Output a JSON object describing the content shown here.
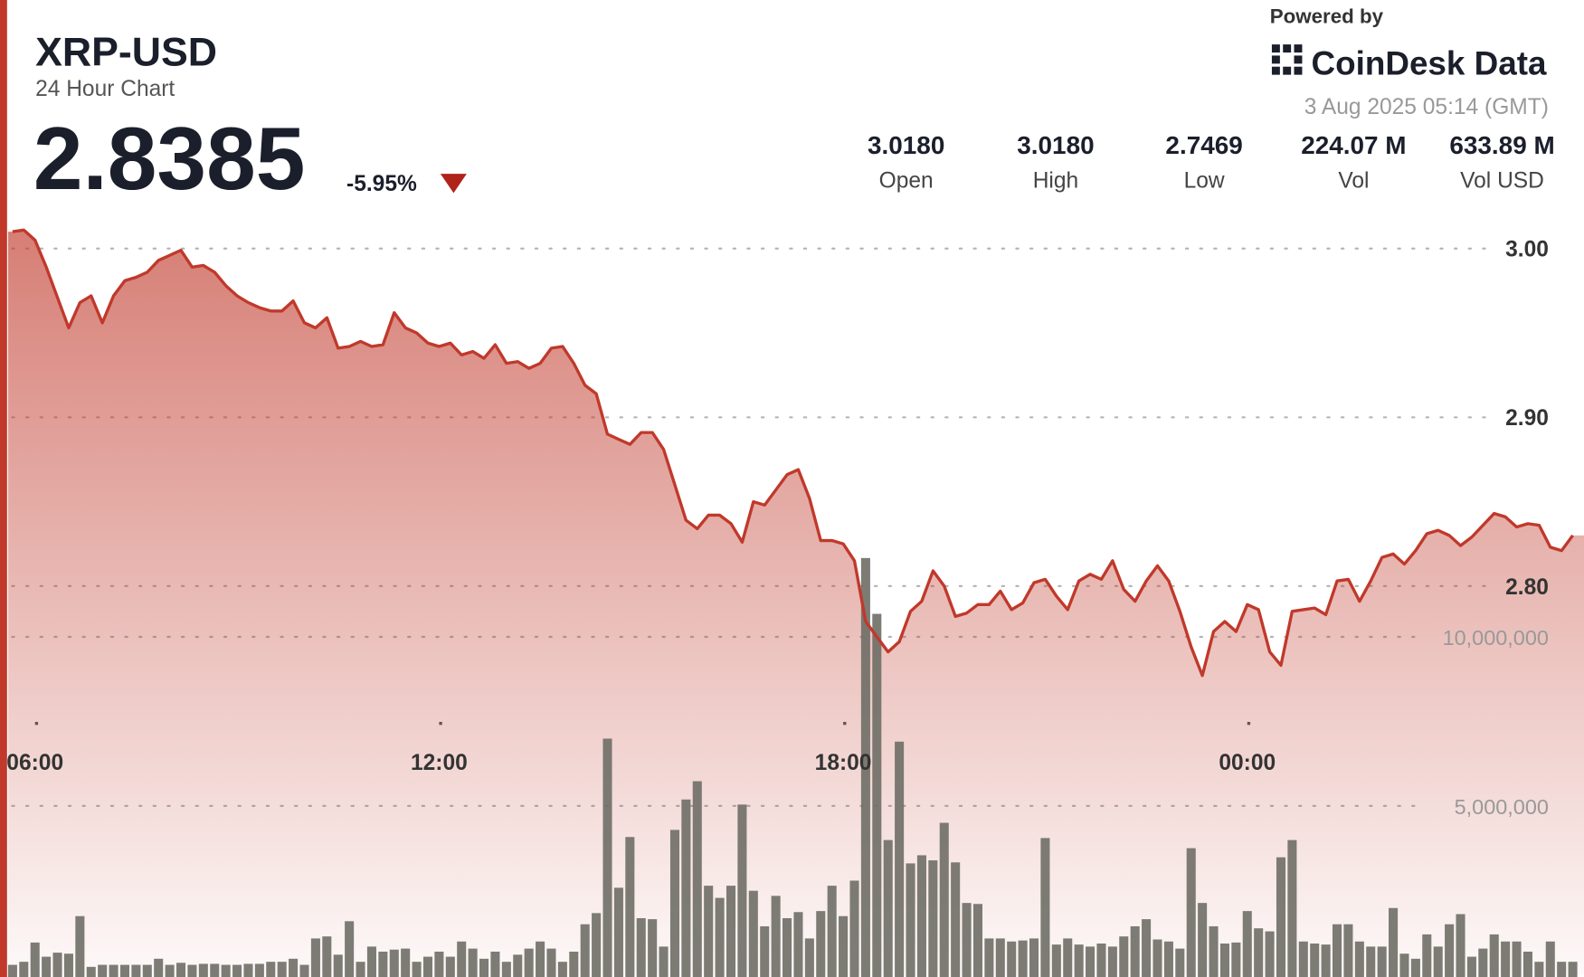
{
  "summary": {
    "price": "2.8385",
    "change": "-5.95%",
    "powered_by": "Powered by",
    "brand": "CoinDesk Data",
    "timestamp": "3 Aug 2025 05:14 (GMT)",
    "stats": [
      {
        "value": "3.0180",
        "label": "Open"
      },
      {
        "value": "3.0180",
        "label": "High"
      },
      {
        "value": "2.7469",
        "label": "Low"
      },
      {
        "value": "224.07 M",
        "label": "Vol"
      },
      {
        "value": "633.89 M",
        "label": "Vol USD"
      }
    ]
  },
  "chart_data": {
    "type": "line",
    "title": "XRP-USD",
    "subtitle": "24 Hour Chart",
    "x": [
      340,
      350,
      360,
      370,
      380,
      390,
      400,
      410,
      420,
      430,
      440,
      450,
      460,
      470,
      480,
      490,
      500,
      510,
      520,
      530,
      540,
      550,
      560,
      570,
      580,
      590,
      600,
      610,
      620,
      630,
      640,
      650,
      660,
      670,
      680,
      690,
      700,
      710,
      720,
      730,
      740,
      750,
      760,
      770,
      780,
      790,
      800,
      810,
      820,
      830,
      840,
      850,
      860,
      870,
      880,
      890,
      900,
      910,
      920,
      930,
      940,
      950,
      960,
      970,
      980,
      990,
      1000,
      1010,
      1020,
      1030,
      1040,
      1050,
      1060,
      1070,
      1080,
      1090,
      1100,
      1110,
      1120,
      1130,
      1140,
      1150,
      1160,
      1170,
      1180,
      1190,
      1200,
      1210,
      1220,
      1230,
      1240,
      1250,
      1260,
      1270,
      1280,
      1290,
      1300,
      1310,
      1320,
      1330,
      1340,
      1350,
      1360,
      1370,
      1380,
      1390,
      1400,
      1410,
      1420,
      1430,
      1440,
      1450,
      1460,
      1470,
      1480,
      1490,
      1500,
      1510,
      1520,
      1530,
      1540,
      1550,
      1560,
      1570,
      1580,
      1590,
      1600,
      1610,
      1620,
      1630,
      1640,
      1650,
      1660,
      1670,
      1680,
      1690,
      1700,
      1710,
      1720,
      1730
    ],
    "series": [
      {
        "name": "Price",
        "type": "line",
        "color": "#c0392b",
        "values": [
          3.01,
          3.011,
          3.005,
          2.989,
          2.971,
          2.953,
          2.968,
          2.972,
          2.956,
          2.972,
          2.981,
          2.983,
          2.986,
          2.993,
          2.996,
          2.999,
          2.989,
          2.99,
          2.986,
          2.978,
          2.972,
          2.968,
          2.965,
          2.963,
          2.963,
          2.969,
          2.956,
          2.953,
          2.959,
          2.941,
          2.942,
          2.945,
          2.942,
          2.943,
          2.962,
          2.953,
          2.95,
          2.944,
          2.942,
          2.944,
          2.937,
          2.939,
          2.935,
          2.943,
          2.932,
          2.933,
          2.929,
          2.932,
          2.941,
          2.942,
          2.932,
          2.919,
          2.914,
          2.89,
          2.887,
          2.884,
          2.891,
          2.891,
          2.881,
          2.86,
          2.839,
          2.834,
          2.842,
          2.842,
          2.837,
          2.826,
          2.85,
          2.848,
          2.857,
          2.866,
          2.869,
          2.852,
          2.827,
          2.827,
          2.825,
          2.815,
          2.779,
          2.77,
          2.761,
          2.767,
          2.785,
          2.791,
          2.809,
          2.8,
          2.782,
          2.784,
          2.789,
          2.789,
          2.797,
          2.786,
          2.79,
          2.802,
          2.804,
          2.794,
          2.786,
          2.803,
          2.807,
          2.804,
          2.815,
          2.798,
          2.791,
          2.803,
          2.812,
          2.803,
          2.785,
          2.764,
          2.747,
          2.773,
          2.779,
          2.773,
          2.789,
          2.786,
          2.761,
          2.753,
          2.785,
          2.786,
          2.787,
          2.783,
          2.803,
          2.804,
          2.791,
          2.803,
          2.817,
          2.819,
          2.813,
          2.821,
          2.831,
          2.833,
          2.83,
          2.824,
          2.829,
          2.836,
          2.843,
          2.841,
          2.835,
          2.837,
          2.836,
          2.823,
          2.821,
          2.83
        ]
      },
      {
        "name": "Volume",
        "type": "bar",
        "axis": "y2",
        "color": "#6e6e66",
        "values": [
          300000,
          390000,
          960000,
          540000,
          660000,
          630000,
          1740000,
          240000,
          300000,
          300000,
          300000,
          300000,
          300000,
          480000,
          300000,
          360000,
          300000,
          330000,
          330000,
          300000,
          300000,
          330000,
          330000,
          390000,
          390000,
          480000,
          300000,
          1080000,
          1140000,
          600000,
          1590000,
          390000,
          840000,
          690000,
          750000,
          780000,
          390000,
          540000,
          690000,
          540000,
          990000,
          780000,
          480000,
          690000,
          390000,
          600000,
          780000,
          990000,
          780000,
          390000,
          690000,
          1500000,
          1830000,
          6990000,
          2580000,
          4080000,
          1680000,
          1650000,
          840000,
          4290000,
          5190000,
          5730000,
          2640000,
          2280000,
          2640000,
          5040000,
          2490000,
          1440000,
          2340000,
          1680000,
          1860000,
          1080000,
          1890000,
          2640000,
          1740000,
          2790000,
          12330000,
          10680000,
          3990000,
          6900000,
          3300000,
          3540000,
          3390000,
          4500000,
          3330000,
          2130000,
          2100000,
          1080000,
          1080000,
          990000,
          1020000,
          1080000,
          4050000,
          900000,
          1080000,
          900000,
          840000,
          930000,
          840000,
          1140000,
          1440000,
          1650000,
          1050000,
          990000,
          780000,
          3750000,
          2130000,
          1440000,
          930000,
          960000,
          1890000,
          1380000,
          1290000,
          3480000,
          3990000,
          990000,
          930000,
          900000,
          1500000,
          1500000,
          990000,
          840000,
          840000,
          1980000,
          630000,
          480000,
          1200000,
          840000,
          1500000,
          1800000,
          540000,
          780000,
          1200000,
          990000,
          990000,
          690000,
          390000,
          990000,
          390000,
          390000
        ]
      }
    ],
    "xlim": [
      336,
      1740
    ],
    "xticks": [
      {
        "value": 360,
        "label": "06:00"
      },
      {
        "value": 720,
        "label": "12:00"
      },
      {
        "value": 1080,
        "label": "18:00"
      },
      {
        "value": 1440,
        "label": "00:00"
      }
    ],
    "ylim": [
      2.5695,
      3.0126
    ],
    "yticks": [
      {
        "value": 3,
        "label": "3.00"
      },
      {
        "value": 2.9,
        "label": "2.90"
      },
      {
        "value": 2.8,
        "label": "2.80"
      }
    ],
    "y2lim": [
      0,
      22110000
    ],
    "y2ticks": [
      {
        "value": 10000000,
        "label": "10,000,000"
      },
      {
        "value": 5000000,
        "label": "5,000,000"
      }
    ],
    "grid": true
  }
}
